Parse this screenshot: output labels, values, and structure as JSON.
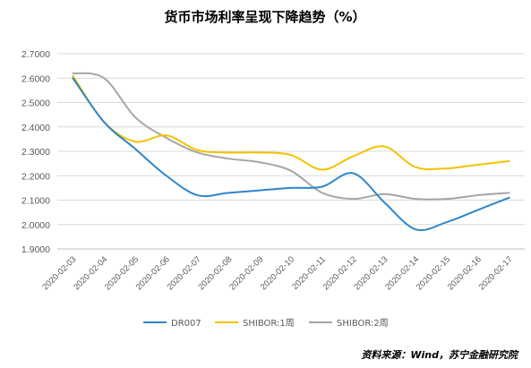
{
  "chart_data": {
    "type": "line",
    "title": "货币市场利率呈现下降趋势（%）",
    "source": "资料来源：Wind，苏宁金融研究院",
    "x": [
      "2020-02-03",
      "2020-02-04",
      "2020-02-05",
      "2020-02-06",
      "2020-02-07",
      "2020-02-08",
      "2020-02-09",
      "2020-02-10",
      "2020-02-11",
      "2020-02-12",
      "2020-02-13",
      "2020-02-14",
      "2020-02-15",
      "2020-02-16",
      "2020-02-17"
    ],
    "x_muted": [
      1
    ],
    "ylim": [
      1.9,
      2.7
    ],
    "yticks": [
      "1.9000",
      "2.0000",
      "2.1000",
      "2.2000",
      "2.3000",
      "2.4000",
      "2.5000",
      "2.6000",
      "2.7000"
    ],
    "ytick_values": [
      1.9,
      2.0,
      2.1,
      2.2,
      2.3,
      2.4,
      2.5,
      2.6,
      2.7
    ],
    "grid": true,
    "legend_position": "bottom",
    "series": [
      {
        "name": "DR007",
        "color": "#2E86C8",
        "values": [
          2.6,
          2.42,
          2.31,
          2.2,
          2.12,
          2.13,
          2.14,
          2.15,
          2.155,
          2.21,
          2.09,
          1.98,
          2.01,
          2.06,
          2.11
        ]
      },
      {
        "name": "SHIBOR:1周",
        "color": "#F2C200",
        "values": [
          2.61,
          2.42,
          2.34,
          2.365,
          2.305,
          2.295,
          2.295,
          2.285,
          2.225,
          2.28,
          2.32,
          2.235,
          2.23,
          2.245,
          2.26
        ]
      },
      {
        "name": "SHIBOR:2周",
        "color": "#A6A6A6",
        "values": [
          2.62,
          2.6,
          2.44,
          2.355,
          2.295,
          2.27,
          2.255,
          2.22,
          2.13,
          2.105,
          2.125,
          2.105,
          2.105,
          2.12,
          2.13
        ]
      }
    ]
  }
}
